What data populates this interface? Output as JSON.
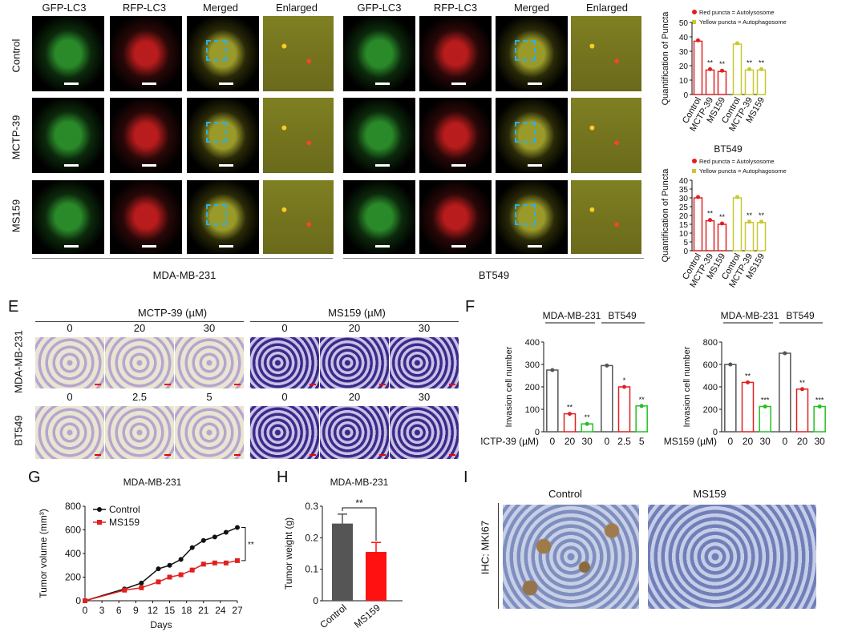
{
  "top": {
    "headers": [
      "GFP-LC3",
      "RFP-LC3",
      "Merged",
      "Enlarged"
    ],
    "header_colors": [
      "#22bb22",
      "#e02020",
      "#f0a020",
      "#111111"
    ],
    "rows": [
      "Control",
      "MCTP-39",
      "MS159"
    ],
    "groups": [
      "MDA-MB-231",
      "BT549"
    ]
  },
  "puncta": [
    {
      "title": "",
      "legend": [
        "Red puncta = Autolysosome",
        "Yellow puncta = Autophagosome"
      ],
      "ylabel": "Quantification of Puncta",
      "ylim": [
        0,
        50
      ],
      "yticks": [
        0,
        10,
        20,
        30,
        40,
        50
      ],
      "categories": [
        "Control",
        "MCTP-39",
        "MS159",
        "Control",
        "MCTP-39",
        "MS159"
      ],
      "values": [
        37,
        17,
        16,
        35,
        17,
        17
      ],
      "sig": [
        "",
        "**",
        "**",
        "",
        "**",
        "**"
      ]
    },
    {
      "title": "BT549",
      "legend": [
        "Red puncta = Autolysosome",
        "Yellow puncta = Autophagosome"
      ],
      "ylabel": "Quantification of Puncta",
      "ylim": [
        0,
        40
      ],
      "yticks": [
        0,
        5,
        10,
        15,
        20,
        25,
        30,
        35,
        40
      ],
      "categories": [
        "Control",
        "MCTP-39",
        "MS159",
        "Control",
        "MCTP-39",
        "MS159"
      ],
      "values": [
        30,
        17,
        15,
        30,
        16,
        16
      ],
      "sig": [
        "",
        "**",
        "**",
        "",
        "**",
        "**"
      ]
    }
  ],
  "panelE": {
    "letter": "E",
    "left_title": "MCTP-39 (µM)",
    "right_title": "MS159 (µM)",
    "rows": [
      "MDA-MB-231",
      "BT549"
    ],
    "row1_doses": [
      "0",
      "20",
      "30",
      "0",
      "20",
      "30"
    ],
    "row2_doses": [
      "0",
      "2.5",
      "5",
      "0",
      "20",
      "30"
    ]
  },
  "panelF": {
    "letter": "F",
    "ylabel": "Invasion cell number",
    "chart_data": [
      {
        "type": "bar",
        "groups": [
          "MDA-MB-231",
          "BT549"
        ],
        "xlabel": "MCTP-39 (µM)",
        "categories": [
          "0",
          "20",
          "30",
          "0",
          "2.5",
          "5"
        ],
        "values": [
          275,
          80,
          35,
          295,
          200,
          115
        ],
        "sig": [
          "",
          "**",
          "**",
          "",
          "*",
          "**"
        ],
        "ylim": [
          0,
          400
        ],
        "yticks": [
          0,
          100,
          200,
          300,
          400
        ]
      },
      {
        "type": "bar",
        "groups": [
          "MDA-MB-231",
          "BT549"
        ],
        "xlabel": "MS159 (µM)",
        "categories": [
          "0",
          "20",
          "30",
          "0",
          "20",
          "30"
        ],
        "values": [
          600,
          440,
          225,
          700,
          380,
          225
        ],
        "sig": [
          "",
          "**",
          "***",
          "",
          "**",
          "***"
        ],
        "ylim": [
          0,
          800
        ],
        "yticks": [
          0,
          200,
          400,
          600,
          800
        ]
      }
    ]
  },
  "panelG": {
    "letter": "G",
    "chart_data": {
      "type": "line",
      "title": "MDA-MB-231",
      "xlabel": "Days",
      "ylabel": "Tumor volume (mm³)",
      "x": [
        0,
        7,
        10,
        13,
        15,
        17,
        19,
        21,
        23,
        25,
        27
      ],
      "xticks": [
        0,
        3,
        6,
        9,
        12,
        15,
        18,
        21,
        24,
        27
      ],
      "yticks": [
        0,
        200,
        400,
        600,
        800
      ],
      "ylim": [
        0,
        800
      ],
      "series": [
        {
          "name": "Control",
          "color": "#111111",
          "values": [
            0,
            100,
            150,
            270,
            300,
            350,
            450,
            510,
            540,
            580,
            620
          ]
        },
        {
          "name": "MS159",
          "color": "#e02020",
          "values": [
            0,
            90,
            110,
            160,
            200,
            220,
            260,
            310,
            320,
            320,
            340
          ]
        }
      ],
      "sig": "**"
    }
  },
  "panelH": {
    "letter": "H",
    "chart_data": {
      "type": "bar",
      "title": "MDA-MB-231",
      "ylabel": "Tumor weight (g)",
      "categories": [
        "Control",
        "MS159"
      ],
      "values": [
        0.245,
        0.155
      ],
      "colors": [
        "#555555",
        "#ff1111"
      ],
      "ylim": [
        0,
        0.3
      ],
      "yticks": [
        0,
        0.1,
        0.2,
        0.3
      ],
      "sig": "**"
    }
  },
  "panelI": {
    "letter": "I",
    "side": "IHC: MKI67",
    "titles": [
      "Control",
      "MS159"
    ]
  }
}
